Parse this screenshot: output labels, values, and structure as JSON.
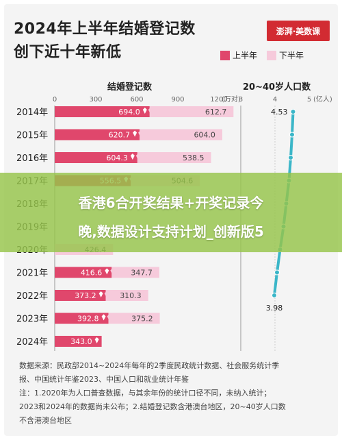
{
  "title_line1": "2024年上半年结婚登记数",
  "title_line2": "创下近十年新低",
  "brand": "澎湃·美数课",
  "legend": {
    "h1": "上半年",
    "h2": "下半年"
  },
  "colors": {
    "h1": "#e0476c",
    "h2": "#f6cadb",
    "line": "#3bb6c8"
  },
  "overlay": {
    "line1": "香港6合开奖结果+开奖记录今",
    "line2": "晚,数据设计支持计划_创新版5"
  },
  "notes": [
    "数据来源：民政部2014~2024年每年的2季度民政统计数据、社会服务统计季",
    "报、中国统计年鉴2023、中国人口和就业统计年鉴",
    "注：1.2020年为人口普查数据，与其余年份的统计口径不同，未纳入统计；",
    "2023和2024年的数据尚未公布；2.结婚登记数含港澳台地区，20~40岁人口数",
    "不含港澳台地区"
  ],
  "chart_data": [
    {
      "type": "bar",
      "title": "结婚登记数",
      "unit": "(万对)",
      "x_ticks": [
        "0",
        "300",
        "600",
        "900",
        "1200"
      ],
      "xlim": [
        0,
        1200
      ],
      "categories": [
        "2014年",
        "2015年",
        "2016年",
        "2017年",
        "2018年",
        "2019年",
        "2020年",
        "2021年",
        "2022年",
        "2023年",
        "2024年"
      ],
      "series": [
        {
          "name": "上半年",
          "values": [
            694.0,
            620.7,
            604.3,
            556.5,
            null,
            null,
            null,
            416.6,
            373.2,
            392.8,
            343.0
          ],
          "labels": [
            "694.0",
            "620.7",
            "604.3",
            "556.5",
            "",
            "",
            "",
            "416.6",
            "373.2",
            "392.8",
            "343.0"
          ]
        },
        {
          "name": "下半年",
          "values": [
            612.7,
            604.0,
            538.5,
            504.6,
            null,
            null,
            426.4,
            347.7,
            310.3,
            375.2,
            null
          ],
          "labels": [
            "612.7",
            "604.0",
            "538.5",
            "504.6",
            "",
            "",
            "426.4",
            "347.7",
            "310.3",
            "375.2",
            ""
          ]
        }
      ]
    },
    {
      "type": "line",
      "title": "20~40岁人口数",
      "unit": "(亿人)",
      "x_ticks": [
        "3",
        "4",
        "5"
      ],
      "xlim": [
        3,
        5
      ],
      "categories": [
        "2014年",
        "2015年",
        "2016年",
        "2017年",
        "2018年",
        "2019年",
        "2020年",
        "2021年",
        "2022年"
      ],
      "values": [
        4.53,
        4.5,
        4.46,
        4.41,
        4.33,
        4.25,
        4.15,
        4.06,
        3.98
      ],
      "labels": {
        "first": "4.53",
        "last": "3.98"
      }
    }
  ]
}
